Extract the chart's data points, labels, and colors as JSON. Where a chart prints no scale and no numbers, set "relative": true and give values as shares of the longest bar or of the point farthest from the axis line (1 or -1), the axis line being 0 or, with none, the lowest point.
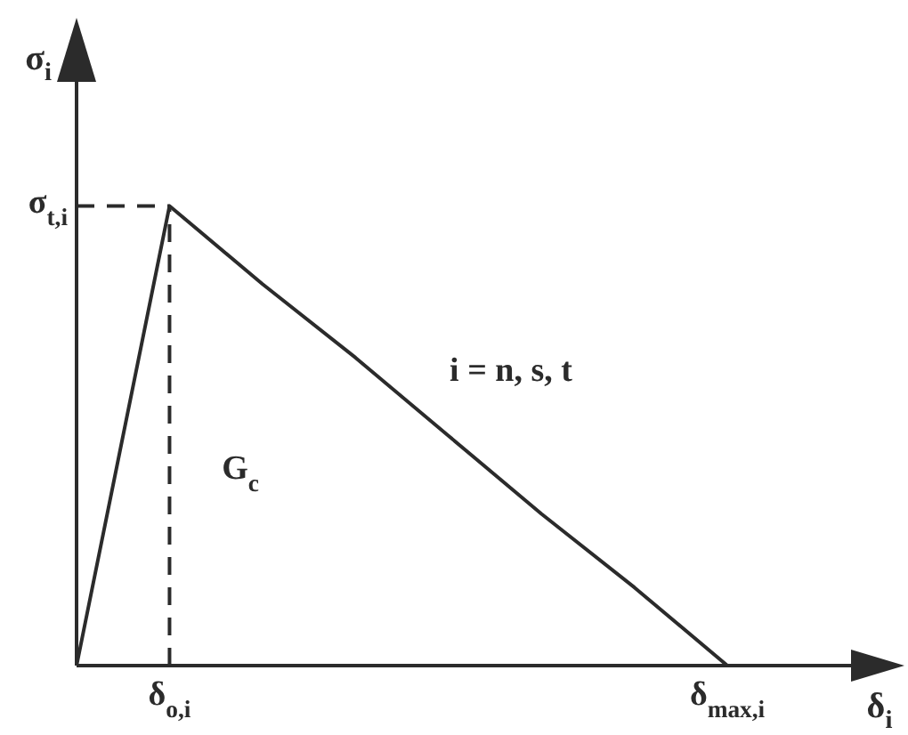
{
  "chart_data": {
    "type": "line",
    "relative": true,
    "xlabel": "δ$_{i}$",
    "ylabel": "σ$_{i}$",
    "categories": [
      null,
      "δ$_{o,i}$",
      null,
      null,
      null,
      null,
      null,
      "δ$_{max,i}$"
    ],
    "line_style": "solid",
    "series": [
      {
        "color": "#2b2b2b",
        "values": [
          0,
          1,
          0.83,
          0.67,
          0.5,
          0.33,
          0.17,
          0
        ]
      }
    ],
    "ref_lines": [
      {
        "axis": "y",
        "value": 1,
        "label": "σ$_{t,i}$",
        "color": "#2b2b2b",
        "line_style": "dashed"
      },
      {
        "axis": "x",
        "value": "δ$_{o,i}$",
        "color": "#2b2b2b",
        "line_style": "dashed"
      }
    ],
    "annotations": [
      "i = n, s, t",
      "G$_{c}$"
    ]
  }
}
